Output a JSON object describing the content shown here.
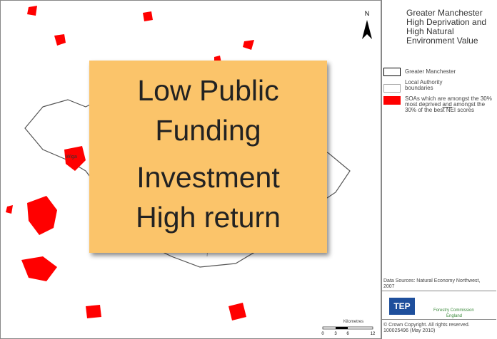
{
  "map": {
    "north": "N",
    "place_label": "Wiga",
    "scale": {
      "title": "Kilometres",
      "ticks": [
        "0",
        "3",
        "6",
        "12"
      ]
    }
  },
  "overlay": {
    "lines": [
      "Low Public",
      "Funding",
      "Investment",
      "High return"
    ]
  },
  "legend": {
    "title": "Greater Manchester High Deprivation and High Natural Environment Value",
    "items": [
      {
        "label": "Greater Manchester"
      },
      {
        "label": "Local Authority boundaries"
      },
      {
        "label_parts": [
          "SOAs which are amongst the 30% most deprived ",
          "and",
          " amongst the 30% of the best NEI scores"
        ]
      }
    ]
  },
  "sources": "Data Sources: Natural Economy Northwest, 2007",
  "logos": {
    "tep": "TEP",
    "forestry": "Forestry Commission",
    "forestry_sub": "England"
  },
  "copyright": "© Crown Copyright. All rights reserved. 100025496 (May 2010)"
}
